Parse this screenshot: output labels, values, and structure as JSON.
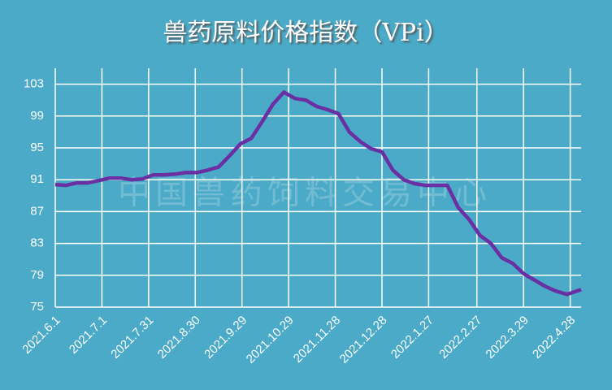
{
  "chart_data": {
    "type": "line",
    "title": "兽药原料价格指数（VPi）",
    "watermark": "中国兽药饲料交易中心",
    "x": [
      "2021.6.1",
      "2021.6.8",
      "2021.6.15",
      "2021.6.22",
      "2021.6.29",
      "2021.7.6",
      "2021.7.13",
      "2021.7.20",
      "2021.7.27",
      "2021.8.3",
      "2021.8.10",
      "2021.8.17",
      "2021.8.24",
      "2021.8.31",
      "2021.9.7",
      "2021.9.14",
      "2021.9.21",
      "2021.9.28",
      "2021.10.5",
      "2021.10.12",
      "2021.10.19",
      "2021.10.26",
      "2021.11.2",
      "2021.11.9",
      "2021.11.16",
      "2021.11.23",
      "2021.11.30",
      "2021.12.7",
      "2021.12.14",
      "2021.12.21",
      "2021.12.28",
      "2022.1.4",
      "2022.1.11",
      "2022.1.18",
      "2022.1.25",
      "2022.2.1",
      "2022.2.8",
      "2022.2.15",
      "2022.2.22",
      "2022.3.1",
      "2022.3.8",
      "2022.3.15",
      "2022.3.22",
      "2022.3.29",
      "2022.4.5",
      "2022.4.12",
      "2022.4.19",
      "2022.4.26",
      "2022.5.5"
    ],
    "series": [
      {
        "name": "VPi",
        "color": "#6a2fa2",
        "values": [
          90.4,
          90.3,
          90.6,
          90.6,
          90.9,
          91.2,
          91.2,
          91.0,
          91.1,
          91.6,
          91.6,
          91.7,
          91.9,
          91.9,
          92.2,
          92.6,
          94.0,
          95.5,
          96.2,
          98.3,
          100.5,
          102.0,
          101.2,
          101.0,
          100.2,
          99.8,
          99.3,
          97.0,
          95.8,
          94.9,
          94.5,
          92.2,
          91.0,
          90.5,
          90.3,
          90.3,
          90.3,
          87.5,
          86.0,
          84.0,
          83.0,
          81.2,
          80.5,
          79.2,
          78.4,
          77.6,
          77.0,
          76.6,
          77.2
        ]
      }
    ],
    "xlim": [
      "2021.6.1",
      "2022.5.5"
    ],
    "xticks": [
      "2021.6.1",
      "2021.7.1",
      "2021.7.31",
      "2021.8.30",
      "2021.9.29",
      "2021.10.29",
      "2021.11.28",
      "2021.12.28",
      "2022.1.27",
      "2022.2.27",
      "2022.3.29",
      "2022.4.28"
    ],
    "ylim": [
      75,
      105
    ],
    "yticks": [
      75,
      79,
      83,
      87,
      91,
      95,
      99,
      103
    ],
    "grid": true
  }
}
